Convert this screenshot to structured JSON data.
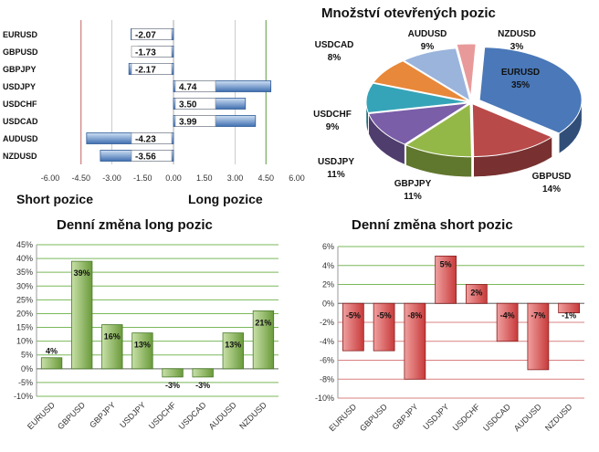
{
  "chart_data": [
    {
      "type": "bar",
      "orientation": "horizontal",
      "categories": [
        "EURUSD",
        "GBPUSD",
        "GBPJPY",
        "USDJPY",
        "USDCHF",
        "USDCAD",
        "AUDUSD",
        "NZDUSD"
      ],
      "values": [
        -2.07,
        -1.73,
        -2.17,
        4.74,
        3.5,
        3.99,
        -4.23,
        -3.56
      ],
      "value_labels": [
        "-2.07",
        "-1.73",
        "-2.17",
        "4.74",
        "3.50",
        "3.99",
        "-4.23",
        "-3.56"
      ],
      "xlim": [
        -6,
        6
      ],
      "x_ticks": [
        "-6.00",
        "-4.50",
        "-3.00",
        "-1.50",
        "0.00",
        "1.50",
        "3.00",
        "4.50",
        "6.00"
      ],
      "left_label": "Short pozice",
      "right_label": "Long pozice",
      "colors": {
        "bar": "#3f6fb0",
        "bar_light": "#cfe0f4",
        "negative_line": "#c06060",
        "positive_line": "#5a9a3a"
      }
    },
    {
      "type": "pie",
      "title": "Množství otevřených pozic",
      "slices": [
        {
          "label": "EURUSD",
          "value": 35,
          "display": "35%",
          "color": "#4a78b8"
        },
        {
          "label": "GBPUSD",
          "value": 14,
          "display": "14%",
          "color": "#b94a4a"
        },
        {
          "label": "GBPJPY",
          "value": 11,
          "display": "11%",
          "color": "#94b848"
        },
        {
          "label": "USDJPY",
          "value": 11,
          "display": "11%",
          "color": "#7a5ea8"
        },
        {
          "label": "USDCHF",
          "value": 9,
          "display": "9%",
          "color": "#36a4b8"
        },
        {
          "label": "USDCAD",
          "value": 8,
          "display": "8%",
          "color": "#e8883a"
        },
        {
          "label": "AUDUSD",
          "value": 9,
          "display": "9%",
          "color": "#9ab4dc"
        },
        {
          "label": "NZDUSD",
          "value": 3,
          "display": "3%",
          "color": "#e89a9a"
        }
      ]
    },
    {
      "type": "bar",
      "title": "Denní změna long pozic",
      "categories": [
        "EURUSD",
        "GBPUSD",
        "GBPJPY",
        "USDJPY",
        "USDCHF",
        "USDCAD",
        "AUDUSD",
        "NZDUSD"
      ],
      "values": [
        4,
        39,
        16,
        13,
        -3,
        -3,
        13,
        21
      ],
      "value_labels": [
        "4%",
        "39%",
        "16%",
        "13%",
        "-3%",
        "-3%",
        "13%",
        "21%"
      ],
      "ylim": [
        -10,
        45
      ],
      "y_ticks": [
        "-10%",
        "-5%",
        "0%",
        "5%",
        "10%",
        "15%",
        "20%",
        "25%",
        "30%",
        "35%",
        "40%",
        "45%"
      ],
      "grid": true,
      "colors": {
        "bar": "#6a9a3a",
        "bar_light": "#c8e0a8",
        "grid": "#7ab85a"
      }
    },
    {
      "type": "bar",
      "title": "Denní změna short pozic",
      "categories": [
        "EURUSD",
        "GBPUSD",
        "GBPJPY",
        "USDJPY",
        "USDCHF",
        "USDCAD",
        "AUDUSD",
        "NZDUSD"
      ],
      "values": [
        -5,
        -5,
        -8,
        5,
        2,
        -4,
        -7,
        -1
      ],
      "value_labels": [
        "-5%",
        "-5%",
        "-8%",
        "5%",
        "2%",
        "-4%",
        "-7%",
        "-1%"
      ],
      "ylim": [
        -10,
        6
      ],
      "y_ticks": [
        "-10%",
        "-8%",
        "-6%",
        "-4%",
        "-2%",
        "0%",
        "2%",
        "4%",
        "6%"
      ],
      "grid": true,
      "colors": {
        "bar": "#c83a3a",
        "bar_light": "#f0a0a0",
        "grid_pos": "#7ab85a",
        "grid_neg": "#d88080"
      }
    }
  ]
}
